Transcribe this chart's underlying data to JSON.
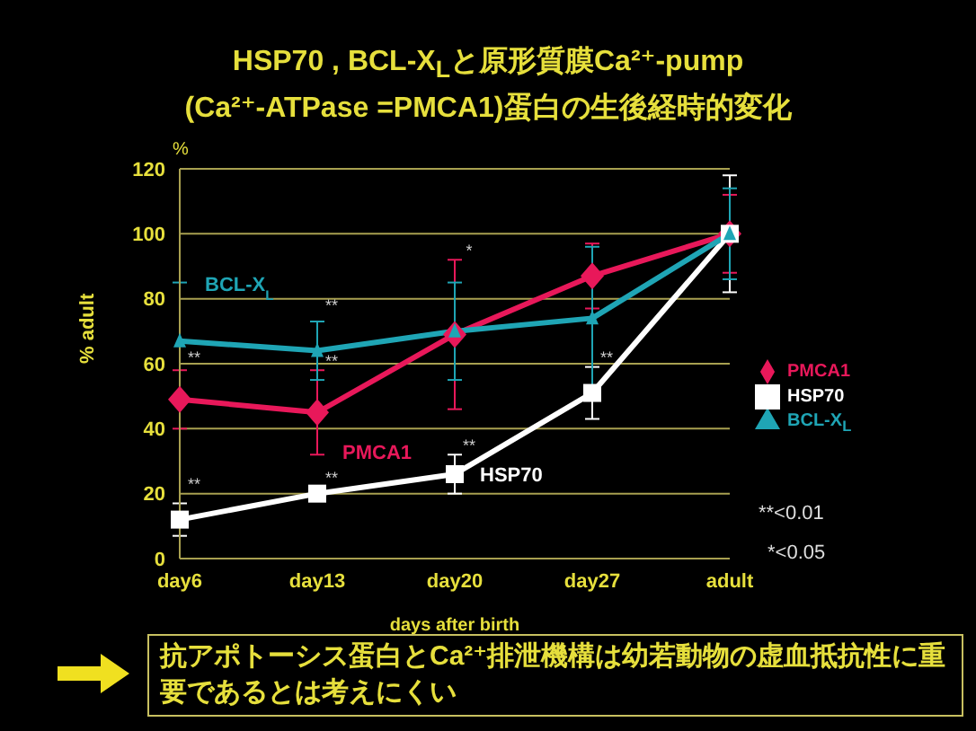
{
  "chart_data": {
    "type": "line",
    "title": "HSP70 , BCL-X$_{L}$と原形質膜Ca²⁺-pump\n(Ca²⁺-ATPase =PMCA1)蛋白の生後経時的変化",
    "xlabel": "days after birth",
    "ylabel": "% adult",
    "categories": [
      "day6",
      "day13",
      "day20",
      "day27",
      "adult"
    ],
    "series": [
      {
        "name": "PMCA1",
        "color": "#e8185a",
        "marker": "diamond",
        "values": [
          49,
          45,
          69,
          87,
          100
        ],
        "errors": [
          9,
          13,
          23,
          10,
          12
        ]
      },
      {
        "name": "HSP70",
        "color": "#ffffff",
        "marker": "square",
        "values": [
          12,
          20,
          26,
          51,
          100
        ],
        "errors": [
          5,
          1,
          6,
          8,
          18
        ]
      },
      {
        "name": "BCL-X$_{L}$",
        "color": "#1fa5b5",
        "marker": "triangle",
        "values": [
          67,
          64,
          70,
          74,
          100
        ],
        "errors": [
          18,
          9,
          15,
          22,
          14
        ]
      }
    ],
    "ylim": [
      0,
      120
    ],
    "yticks": [
      0,
      20,
      40,
      60,
      80,
      100,
      120
    ],
    "grid": "y",
    "legend": "right",
    "annotations": [
      "%",
      "**<0.01",
      "*<0.05",
      "抗アポトーシス蛋白とCa²⁺排泄機構は幼若動物の虚血抵抗性に重要であるとは考えにくい",
      "**",
      "**",
      "**",
      "**",
      "**",
      "**",
      "**",
      "*"
    ]
  }
}
